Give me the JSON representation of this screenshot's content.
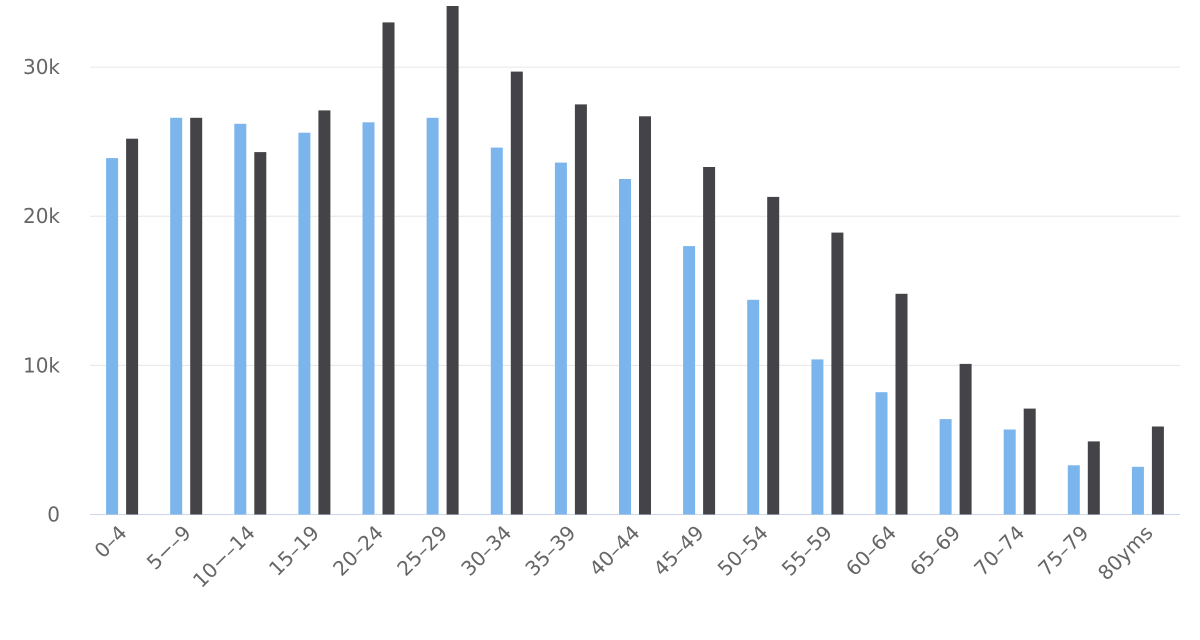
{
  "colors": {
    "series_0": "#7cb5ec",
    "series_1": "#434348",
    "grid": "#e6e6e6",
    "axis_line": "#ccd6eb",
    "tick_text": "#666666"
  },
  "chart_data": {
    "type": "bar",
    "title": "",
    "xlabel": "",
    "ylabel": "",
    "ylim": [
      0,
      34500
    ],
    "grid": true,
    "legend": "none",
    "y_ticks": [
      {
        "value": 0,
        "label": "0"
      },
      {
        "value": 10000,
        "label": "10k"
      },
      {
        "value": 20000,
        "label": "20k"
      },
      {
        "value": 30000,
        "label": "30k"
      }
    ],
    "categories": [
      "0–4",
      "5−–9",
      "10−–14",
      "15–19",
      "20–24",
      "25–29",
      "30–34",
      "35–39",
      "40–44",
      "45–49",
      "50–54",
      "55–59",
      "60–64",
      "65–69",
      "70–74",
      "75–79",
      "80yms"
    ],
    "series": [
      {
        "color": "#7cb5ec",
        "values": [
          23900,
          26600,
          26200,
          25600,
          26300,
          26600,
          24600,
          23600,
          22500,
          18000,
          14400,
          10400,
          8200,
          6400,
          5700,
          3300,
          3200
        ]
      },
      {
        "color": "#434348",
        "values": [
          25200,
          26600,
          24300,
          27100,
          33000,
          34100,
          29700,
          27500,
          26700,
          23300,
          21300,
          18900,
          14800,
          10100,
          7100,
          4900,
          5900
        ]
      }
    ]
  }
}
